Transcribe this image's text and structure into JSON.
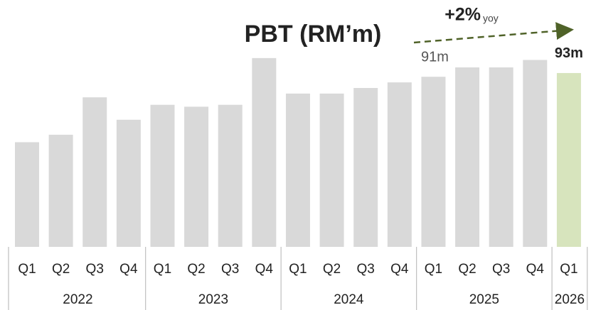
{
  "chart_data": {
    "type": "bar",
    "title": "PBT (RM’m)",
    "annotation": {
      "change": "+2%",
      "unit": "yoy"
    },
    "groups": [
      {
        "name": "2022",
        "categories": [
          "Q1",
          "Q2",
          "Q3",
          "Q4"
        ],
        "values": [
          56,
          60,
          80,
          68
        ],
        "color": "#d9d9d9"
      },
      {
        "name": "2023",
        "categories": [
          "Q1",
          "Q2",
          "Q3",
          "Q4"
        ],
        "values": [
          76,
          75,
          76,
          101
        ],
        "color": "#d9d9d9"
      },
      {
        "name": "2024",
        "categories": [
          "Q1",
          "Q2",
          "Q3",
          "Q4"
        ],
        "values": [
          82,
          82,
          85,
          88
        ],
        "color": "#d9d9d9"
      },
      {
        "name": "2025",
        "categories": [
          "Q1",
          "Q2",
          "Q3",
          "Q4"
        ],
        "values": [
          91,
          96,
          96,
          100
        ],
        "value_labels": [
          "91m",
          null,
          null,
          null
        ],
        "color": "#d9d9d9"
      },
      {
        "name": "2026",
        "categories": [
          "Q1"
        ],
        "values": [
          93
        ],
        "value_labels": [
          "93m"
        ],
        "color": "#d7e4bd"
      }
    ],
    "arrow_color": "#4f6228"
  }
}
